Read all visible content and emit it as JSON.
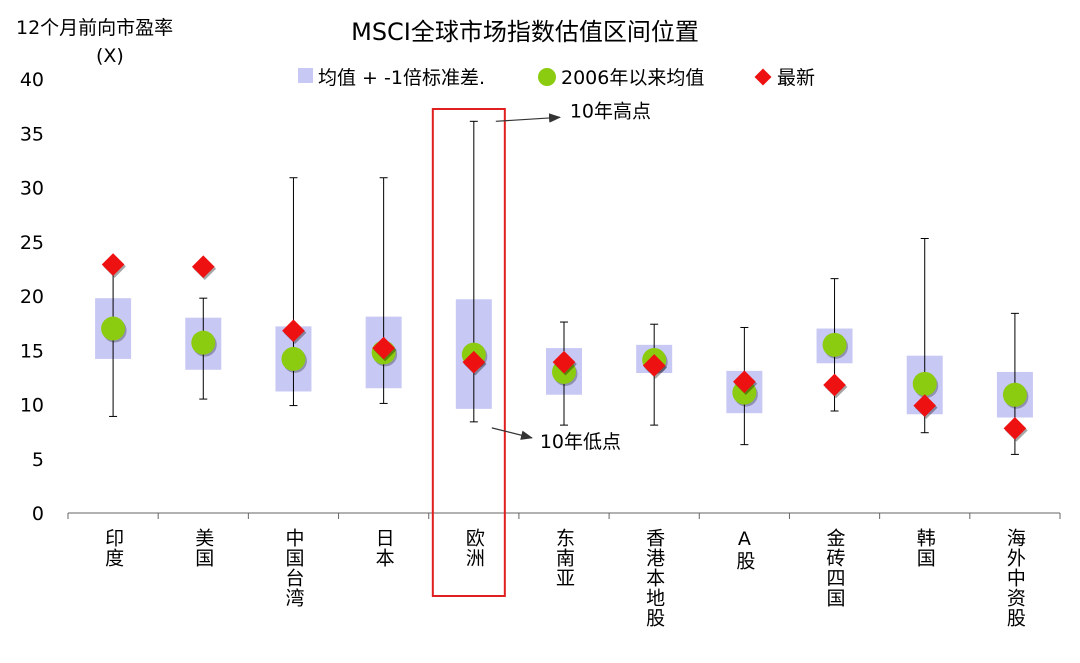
{
  "chart_data": {
    "type": "range",
    "title": "MSCI全球市场指数估值区间位置",
    "ylabel_line1": "12个月前向市盈率",
    "ylabel_line2": "(X)",
    "ylim": [
      0,
      40
    ],
    "yticks": [
      "0",
      "5",
      "10",
      "15",
      "20",
      "25",
      "30",
      "35",
      "40"
    ],
    "legend": {
      "band": "均值 + -1倍标准差.",
      "mean": "2006年以来均值",
      "latest": "最新"
    },
    "colors": {
      "band": "#c8c8f5",
      "mean": "#8ccc10",
      "latest": "#ee1111",
      "highlight": "#e02020",
      "annot_arrow": "#333333"
    },
    "categories": [
      "印度",
      "美国",
      "中国台湾",
      "日本",
      "欧洲",
      "东南亚",
      "香港本地股",
      "A股",
      "金砖四国",
      "韩国",
      "海外中资股"
    ],
    "high": [
      23.0,
      19.8,
      30.9,
      30.9,
      36.1,
      17.6,
      17.4,
      17.1,
      21.6,
      25.3,
      18.4
    ],
    "low": [
      8.9,
      10.5,
      9.9,
      10.1,
      8.4,
      8.1,
      8.1,
      6.3,
      9.4,
      7.4,
      5.4
    ],
    "band_top": [
      19.8,
      18.0,
      17.2,
      18.1,
      19.7,
      15.2,
      15.5,
      13.1,
      17.0,
      14.5,
      13.0
    ],
    "band_bottom": [
      14.2,
      13.2,
      11.2,
      11.5,
      9.6,
      10.9,
      12.9,
      9.2,
      13.8,
      9.1,
      8.8
    ],
    "mean": [
      17.0,
      15.7,
      14.2,
      14.8,
      14.6,
      13.0,
      14.1,
      11.1,
      15.5,
      11.9,
      10.9
    ],
    "latest": [
      22.9,
      22.7,
      16.8,
      15.2,
      13.9,
      13.9,
      13.6,
      12.1,
      11.8,
      9.9,
      7.8
    ],
    "highlight_category": "欧洲",
    "annotations": {
      "high": "10年高点",
      "low": "10年低点"
    }
  }
}
